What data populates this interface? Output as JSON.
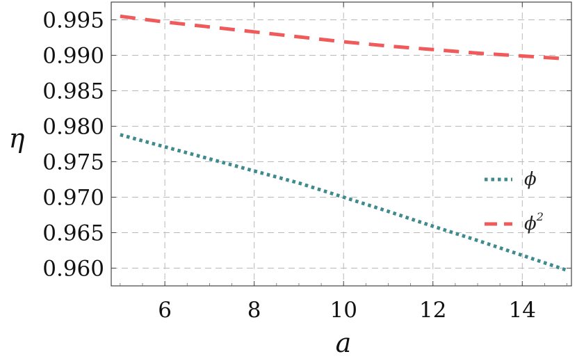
{
  "chart_data": {
    "type": "line",
    "title": "",
    "xlabel": "a",
    "ylabel": "η",
    "xlim": [
      4.8,
      15.1
    ],
    "ylim": [
      0.9575,
      0.9975
    ],
    "xticks": [
      6,
      8,
      10,
      12,
      14
    ],
    "xtick_labels": [
      "6",
      "8",
      "10",
      "12",
      "14"
    ],
    "yticks": [
      0.96,
      0.965,
      0.97,
      0.975,
      0.98,
      0.985,
      0.99,
      0.995
    ],
    "ytick_labels": [
      "0.960",
      "0.965",
      "0.970",
      "0.975",
      "0.980",
      "0.985",
      "0.990",
      "0.995"
    ],
    "grid": true,
    "legend_position": "right",
    "series": [
      {
        "name": "ϕ",
        "name_base": "ϕ",
        "name_sup": "",
        "style": "dotted",
        "color": "#3f8a8c",
        "x": [
          5,
          6,
          7,
          8,
          9,
          10,
          11,
          12,
          13,
          14,
          15
        ],
        "y": [
          0.9788,
          0.9771,
          0.9754,
          0.9737,
          0.972,
          0.97,
          0.968,
          0.9659,
          0.9639,
          0.9618,
          0.9597
        ]
      },
      {
        "name": "ϕ2",
        "name_base": "ϕ",
        "name_sup": "2",
        "style": "dashed",
        "color": "#f05a5a",
        "x": [
          5,
          6,
          7,
          8,
          9,
          10,
          11,
          12,
          13,
          14,
          15
        ],
        "y": [
          0.9955,
          0.9947,
          0.994,
          0.9933,
          0.9926,
          0.9919,
          0.9913,
          0.9908,
          0.9903,
          0.9899,
          0.9895
        ]
      }
    ]
  }
}
